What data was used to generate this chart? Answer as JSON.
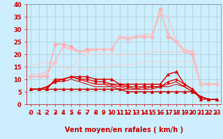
{
  "background_color": "#cceeff",
  "plot_bg_color": "#cceeff",
  "grid_color": "#aacccc",
  "xlabel": "Vent moyen/en rafales ( km/h )",
  "xlabel_color": "#cc0000",
  "xlabel_fontsize": 7,
  "ylabel_ticks": [
    0,
    5,
    10,
    15,
    20,
    25,
    30,
    35,
    40
  ],
  "xlim": [
    -0.5,
    23.5
  ],
  "ylim": [
    0,
    40
  ],
  "x": [
    0,
    1,
    2,
    3,
    4,
    5,
    6,
    7,
    8,
    9,
    10,
    11,
    12,
    13,
    14,
    15,
    16,
    17,
    18,
    19,
    20,
    21,
    22,
    23
  ],
  "series": [
    {
      "y": [
        6,
        6,
        6,
        10,
        10,
        11,
        11,
        11,
        10,
        10,
        10,
        8,
        8,
        8,
        8,
        8,
        8,
        12,
        13,
        8,
        6,
        2,
        2,
        2
      ],
      "color": "#dd0000",
      "lw": 1.0,
      "marker": "^",
      "ms": 2.5,
      "zorder": 5
    },
    {
      "y": [
        6,
        6,
        7,
        9,
        10,
        11,
        10,
        10,
        9,
        9,
        8,
        8,
        7,
        7,
        7,
        7,
        7,
        9,
        10,
        8,
        6,
        3,
        2,
        2
      ],
      "color": "#dd0000",
      "lw": 0.9,
      "marker": "^",
      "ms": 2.0,
      "zorder": 4
    },
    {
      "y": [
        6,
        6,
        7,
        9,
        10,
        11,
        10,
        9,
        8,
        8,
        8,
        7,
        7,
        6,
        7,
        7,
        7,
        8,
        9,
        7,
        5,
        3,
        2,
        2
      ],
      "color": "#ee2222",
      "lw": 0.8,
      "marker": null,
      "ms": 0,
      "zorder": 3
    },
    {
      "y": [
        6,
        6,
        7,
        9,
        10,
        11,
        10,
        9,
        8,
        8,
        7,
        7,
        6,
        6,
        6,
        7,
        7,
        8,
        9,
        7,
        5,
        3,
        2,
        2
      ],
      "color": "#ee2222",
      "lw": 0.7,
      "marker": null,
      "ms": 0,
      "zorder": 3
    },
    {
      "y": [
        6,
        6,
        7,
        9,
        9,
        10,
        9,
        8,
        7,
        7,
        7,
        6,
        6,
        6,
        6,
        6,
        7,
        7,
        8,
        7,
        5,
        3,
        2,
        2
      ],
      "color": "#cc0000",
      "lw": 0.7,
      "marker": null,
      "ms": 0,
      "zorder": 3
    },
    {
      "y": [
        6,
        6,
        6,
        6,
        6,
        6,
        6,
        6,
        6,
        6,
        6,
        6,
        5,
        5,
        5,
        5,
        5,
        5,
        5,
        5,
        5,
        3,
        2,
        2
      ],
      "color": "#cc0000",
      "lw": 1.0,
      "marker": "^",
      "ms": 2.5,
      "zorder": 5
    },
    {
      "y": [
        11,
        11,
        11,
        24,
        24,
        23,
        21,
        22,
        22,
        22,
        22,
        27,
        26,
        27,
        27,
        27,
        38,
        27,
        25,
        21,
        20,
        8,
        8,
        8
      ],
      "color": "#ffaaaa",
      "lw": 1.0,
      "marker": "D",
      "ms": 2.5,
      "zorder": 4
    },
    {
      "y": [
        11,
        11,
        12,
        17,
        23,
        22,
        21,
        21,
        22,
        22,
        22,
        27,
        26,
        27,
        27,
        27,
        37,
        28,
        25,
        21,
        21,
        8,
        8,
        8
      ],
      "color": "#ffbbbb",
      "lw": 0.9,
      "marker": "D",
      "ms": 2.0,
      "zorder": 4
    },
    {
      "y": [
        12,
        12,
        13,
        17,
        23,
        22,
        21,
        21,
        22,
        22,
        22,
        27,
        27,
        27,
        28,
        28,
        36,
        35,
        25,
        22,
        21,
        8,
        8,
        8
      ],
      "color": "#ffbbbb",
      "lw": 0.8,
      "marker": null,
      "ms": 0,
      "zorder": 3
    },
    {
      "y": [
        16,
        16,
        17,
        16,
        15,
        14,
        19,
        20,
        20,
        20,
        20,
        20,
        20,
        20,
        20,
        21,
        21,
        21,
        21,
        21,
        21,
        8,
        8,
        8
      ],
      "color": "#ffcccc",
      "lw": 0.8,
      "marker": null,
      "ms": 0,
      "zorder": 2
    },
    {
      "y": [
        6,
        6,
        7,
        10,
        10,
        11,
        14,
        14,
        14,
        15,
        15,
        16,
        16,
        16,
        17,
        17,
        17,
        17,
        17,
        17,
        17,
        8,
        8,
        8
      ],
      "color": "#ffcccc",
      "lw": 0.7,
      "marker": null,
      "ms": 0,
      "zorder": 2
    }
  ],
  "wind_arrows": {
    "angles_deg": [
      45,
      45,
      45,
      90,
      90,
      90,
      45,
      45,
      0,
      0,
      0,
      0,
      0,
      0,
      0,
      0,
      0,
      0,
      0,
      0,
      0,
      0,
      0,
      0
    ],
    "color": "#cc0000",
    "y_data": -2.8
  },
  "tick_label_color": "#cc0000",
  "tick_label_fontsize": 6,
  "figsize": [
    3.2,
    2.0
  ],
  "dpi": 100
}
